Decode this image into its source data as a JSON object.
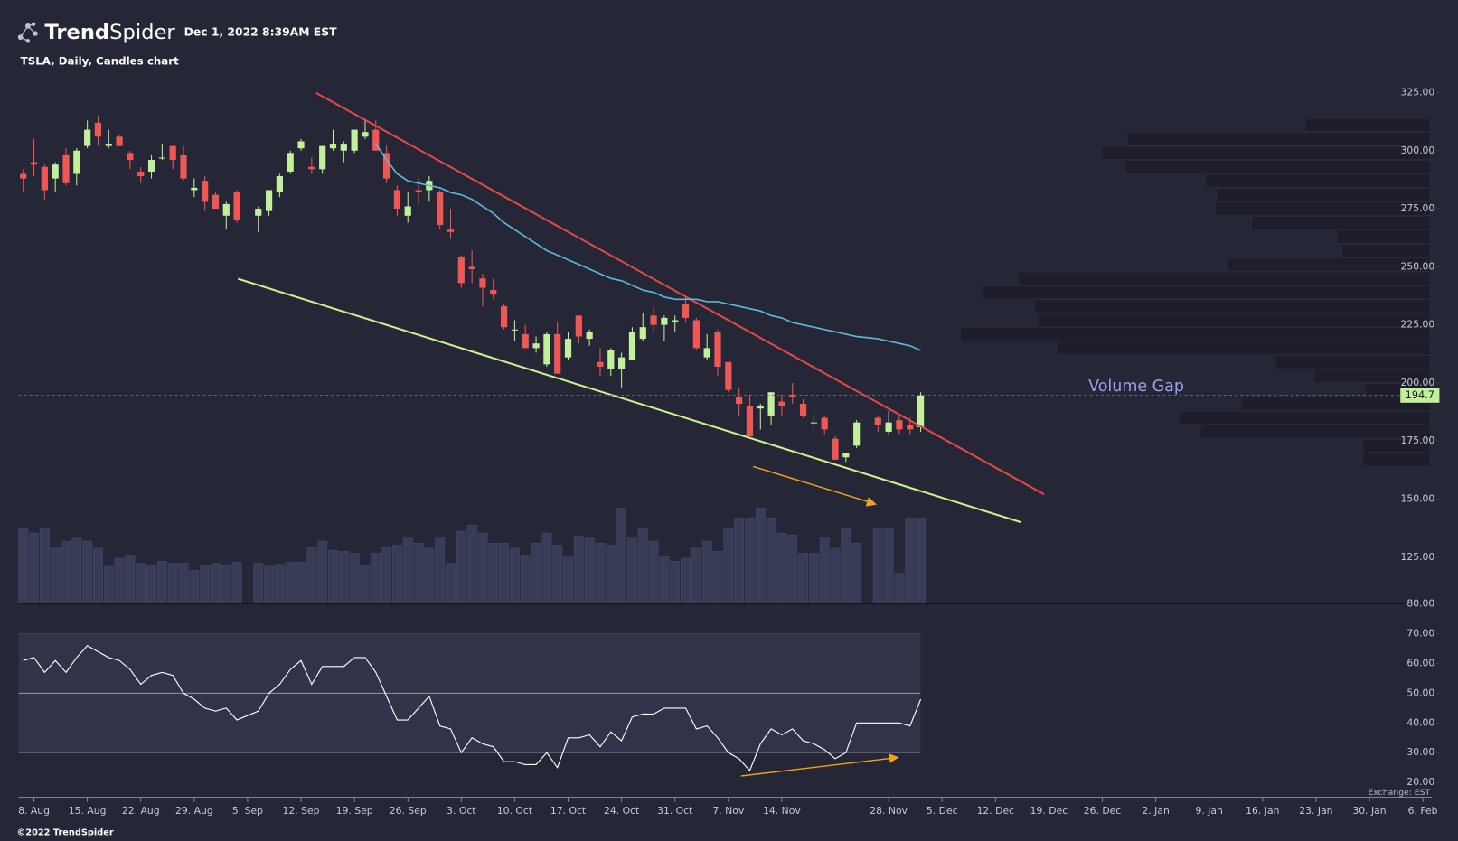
{
  "header": {
    "brand_bold": "Trend",
    "brand_light": "Spider",
    "timestamp": "Dec 1, 2022 8:39AM EST",
    "copyright": "©2022 TrendSpider",
    "exchange": "Exchange: EST"
  },
  "chart_data": {
    "type": "candlestick",
    "title": "TSLA, Daily, Candles chart",
    "annotations": [
      "Volume Gap"
    ],
    "up_color": "#c3f09a",
    "down_color": "#ef5656",
    "x": [
      "2022-08-05",
      "2022-08-08",
      "2022-08-09",
      "2022-08-10",
      "2022-08-11",
      "2022-08-12",
      "2022-08-15",
      "2022-08-16",
      "2022-08-17",
      "2022-08-18",
      "2022-08-19",
      "2022-08-22",
      "2022-08-23",
      "2022-08-24",
      "2022-08-25",
      "2022-08-26",
      "2022-08-29",
      "2022-08-30",
      "2022-08-31",
      "2022-09-01",
      "2022-09-02",
      "2022-09-06",
      "2022-09-07",
      "2022-09-08",
      "2022-09-09",
      "2022-09-12",
      "2022-09-13",
      "2022-09-14",
      "2022-09-15",
      "2022-09-16",
      "2022-09-19",
      "2022-09-20",
      "2022-09-21",
      "2022-09-22",
      "2022-09-23",
      "2022-09-26",
      "2022-09-27",
      "2022-09-28",
      "2022-09-29",
      "2022-09-30",
      "2022-10-03",
      "2022-10-04",
      "2022-10-05",
      "2022-10-06",
      "2022-10-07",
      "2022-10-10",
      "2022-10-11",
      "2022-10-12",
      "2022-10-13",
      "2022-10-14",
      "2022-10-17",
      "2022-10-18",
      "2022-10-19",
      "2022-10-20",
      "2022-10-21",
      "2022-10-24",
      "2022-10-25",
      "2022-10-26",
      "2022-10-27",
      "2022-10-28",
      "2022-10-31",
      "2022-11-01",
      "2022-11-02",
      "2022-11-03",
      "2022-11-04",
      "2022-11-07",
      "2022-11-08",
      "2022-11-09",
      "2022-11-10",
      "2022-11-11",
      "2022-11-14",
      "2022-11-15",
      "2022-11-16",
      "2022-11-17",
      "2022-11-18",
      "2022-11-21",
      "2022-11-22",
      "2022-11-23",
      "2022-11-25",
      "2022-11-28",
      "2022-11-29",
      "2022-11-30",
      "2022-12-01"
    ],
    "open": [
      290,
      295,
      293,
      288,
      298,
      290,
      302,
      312,
      302,
      306,
      299,
      291,
      291,
      297,
      302,
      298,
      283,
      287,
      281,
      272,
      282,
      272,
      274,
      282,
      291,
      301,
      293,
      292,
      301,
      300,
      300,
      306,
      309,
      299,
      283,
      272,
      283,
      283,
      282,
      266,
      254,
      250,
      245,
      240,
      233,
      223,
      221,
      215,
      208,
      221,
      211,
      229,
      219,
      209,
      206,
      206,
      210,
      219,
      229,
      225,
      226,
      234,
      227,
      211,
      222,
      209,
      194,
      190,
      189,
      186,
      192,
      195,
      191,
      183,
      185,
      176,
      168,
      173,
      185,
      179,
      184,
      182,
      181
    ],
    "high": [
      292,
      305,
      294,
      295,
      301,
      301,
      313,
      315,
      309,
      307,
      300,
      293,
      298,
      303,
      302,
      302,
      288,
      289,
      282,
      278,
      283,
      276,
      283,
      290,
      300,
      305,
      297,
      302,
      309,
      304,
      309,
      313,
      313,
      302,
      285,
      282,
      288,
      289,
      283,
      275,
      255,
      257,
      247,
      245,
      234,
      227,
      225,
      220,
      222,
      226,
      222,
      229,
      223,
      215,
      215,
      213,
      224,
      230,
      233,
      229,
      229,
      237,
      228,
      221,
      223,
      209,
      198,
      195,
      191,
      196,
      195,
      200,
      193,
      187,
      186,
      177,
      170,
      184,
      186,
      188,
      186,
      185,
      196
    ],
    "low": [
      282,
      289,
      279,
      282,
      285,
      285,
      301,
      302,
      301,
      302,
      292,
      286,
      288,
      296,
      292,
      287,
      280,
      274,
      275,
      266,
      269,
      265,
      272,
      280,
      290,
      300,
      290,
      290,
      300,
      295,
      299,
      305,
      300,
      286,
      272,
      269,
      277,
      278,
      266,
      262,
      241,
      243,
      233,
      236,
      223,
      218,
      215,
      213,
      207,
      204,
      210,
      217,
      216,
      203,
      203,
      198,
      210,
      218,
      222,
      218,
      222,
      226,
      214,
      210,
      203,
      196,
      186,
      177,
      180,
      182,
      186,
      191,
      185,
      180,
      178,
      167,
      166,
      172,
      179,
      178,
      178,
      178,
      179
    ],
    "close": [
      288,
      294,
      283,
      294,
      286,
      300,
      309,
      306,
      303,
      302,
      296,
      289,
      296,
      297,
      296,
      288,
      284,
      278,
      275,
      277,
      270,
      275,
      283,
      289,
      299,
      304,
      292,
      302,
      303,
      303,
      309,
      308,
      300,
      288,
      275,
      276,
      282,
      287,
      268,
      265,
      243,
      249,
      241,
      238,
      224,
      223,
      215,
      217,
      221,
      204,
      219,
      220,
      222,
      207,
      214,
      211,
      222,
      224,
      225,
      228,
      227,
      228,
      215,
      215,
      207,
      197,
      191,
      177,
      190,
      196,
      190,
      194,
      186,
      183,
      180,
      167,
      170,
      183,
      182,
      183,
      180,
      180,
      194.7
    ],
    "volume": [
      150,
      140,
      150,
      110,
      124,
      130,
      124,
      110,
      74,
      90,
      96,
      80,
      76,
      84,
      80,
      80,
      66,
      76,
      80,
      76,
      82,
      80,
      74,
      78,
      82,
      82,
      112,
      124,
      106,
      104,
      100,
      76,
      100,
      112,
      116,
      130,
      120,
      110,
      130,
      80,
      144,
      156,
      140,
      120,
      120,
      110,
      96,
      120,
      140,
      116,
      92,
      134,
      130,
      120,
      116,
      190,
      130,
      150,
      124,
      94,
      84,
      90,
      110,
      124,
      104,
      150,
      170,
      170,
      190,
      170,
      140,
      136,
      100,
      100,
      130,
      110,
      150,
      120,
      150,
      150,
      60,
      170,
      170
    ],
    "ma": {
      "color": "#5ab8d8",
      "values": [
        null,
        null,
        null,
        null,
        null,
        null,
        null,
        null,
        null,
        null,
        null,
        null,
        null,
        null,
        null,
        null,
        null,
        null,
        null,
        null,
        null,
        null,
        null,
        null,
        null,
        null,
        null,
        null,
        null,
        null,
        null,
        null,
        303,
        296,
        290,
        287,
        286,
        285,
        284,
        282,
        281,
        279,
        276,
        273,
        269,
        266,
        263,
        260,
        257,
        255,
        253,
        251,
        249,
        247,
        245,
        244,
        242,
        240,
        239,
        237,
        236,
        236,
        236,
        235,
        235,
        234,
        233,
        232,
        231,
        229,
        228,
        226,
        225,
        224,
        223,
        222,
        221,
        220,
        219,
        218,
        217,
        216,
        214
      ]
    },
    "rsi": {
      "color": "#ffffff",
      "values": [
        61,
        62,
        57,
        61,
        57,
        62,
        66,
        64,
        62,
        61,
        58,
        53,
        56,
        57,
        56,
        50,
        48,
        45,
        44,
        45,
        41,
        44,
        50,
        53,
        58,
        61,
        53,
        59,
        59,
        59,
        62,
        62,
        57,
        49,
        41,
        41,
        45,
        49,
        39,
        38,
        30,
        35,
        33,
        32,
        27,
        27,
        26,
        26,
        30,
        25,
        35,
        35,
        36,
        32,
        37,
        34,
        42,
        43,
        43,
        45,
        45,
        45,
        38,
        39,
        35,
        30,
        28,
        24,
        33,
        38,
        36,
        38,
        34,
        33,
        31,
        28,
        30,
        40,
        40,
        40,
        40,
        39,
        48
      ],
      "band": [
        30,
        70
      ],
      "mid": 50,
      "ylim": [
        15,
        80
      ],
      "yticks": [
        {
          "value": 20,
          "label": "20.00"
        },
        {
          "value": 30,
          "label": "30.00"
        },
        {
          "value": 40,
          "label": "40.00"
        },
        {
          "value": 50,
          "label": "50.00"
        },
        {
          "value": 60,
          "label": "60.00"
        },
        {
          "value": 70,
          "label": "70.00"
        },
        {
          "value": 80,
          "label": "80.00"
        }
      ]
    },
    "volume_profile": {
      "color": "#1d1e29",
      "bins": [
        164,
        170,
        176,
        182,
        188,
        194,
        200,
        206,
        212,
        218,
        224,
        230,
        236,
        242,
        248,
        254,
        260,
        266,
        272,
        278,
        284,
        290,
        296,
        302,
        308,
        314
      ],
      "values": [
        73,
        72,
        247,
        270,
        203,
        70,
        125,
        166,
        400,
        505,
        422,
        425,
        481,
        443,
        218,
        95,
        100,
        192,
        231,
        228,
        242,
        328,
        353,
        325,
        134
      ]
    },
    "ylim": [
      105,
      329
    ],
    "yticks": [
      {
        "value": 125,
        "label": "125.00"
      },
      {
        "value": 150,
        "label": "150.00"
      },
      {
        "value": 175,
        "label": "175.00"
      },
      {
        "value": 200,
        "label": "200.00"
      },
      {
        "value": 225,
        "label": "225.00"
      },
      {
        "value": 250,
        "label": "250.00"
      },
      {
        "value": 275,
        "label": "275.00"
      },
      {
        "value": 300,
        "label": "300.00"
      },
      {
        "value": 325,
        "label": "325.00"
      }
    ],
    "xticks": [
      {
        "value": "2022-08-08",
        "label": "8. Aug"
      },
      {
        "value": "2022-08-15",
        "label": "15. Aug"
      },
      {
        "value": "2022-08-22",
        "label": "22. Aug"
      },
      {
        "value": "2022-08-29",
        "label": "29. Aug"
      },
      {
        "value": "2022-09-05",
        "label": "5. Sep"
      },
      {
        "value": "2022-09-12",
        "label": "12. Sep"
      },
      {
        "value": "2022-09-19",
        "label": "19. Sep"
      },
      {
        "value": "2022-09-26",
        "label": "26. Sep"
      },
      {
        "value": "2022-10-03",
        "label": "3. Oct"
      },
      {
        "value": "2022-10-10",
        "label": "10. Oct"
      },
      {
        "value": "2022-10-17",
        "label": "17. Oct"
      },
      {
        "value": "2022-10-24",
        "label": "24. Oct"
      },
      {
        "value": "2022-10-31",
        "label": "31. Oct"
      },
      {
        "value": "2022-11-07",
        "label": "7. Nov"
      },
      {
        "value": "2022-11-14",
        "label": "14. Nov"
      },
      {
        "value": "2022-11-28",
        "label": "28. Nov"
      },
      {
        "value": "2022-12-05",
        "label": "5. Dec"
      },
      {
        "value": "2022-12-12",
        "label": "12. Dec"
      },
      {
        "value": "2022-12-19",
        "label": "19. Dec"
      },
      {
        "value": "2022-12-26",
        "label": "26. Dec"
      },
      {
        "value": "2023-01-02",
        "label": "2. Jan"
      },
      {
        "value": "2023-01-09",
        "label": "9. Jan"
      },
      {
        "value": "2023-01-16",
        "label": "16. Jan"
      },
      {
        "value": "2023-01-23",
        "label": "23. Jan"
      },
      {
        "value": "2023-01-30",
        "label": "30. Jan"
      },
      {
        "value": "2023-02-06",
        "label": "6. Feb"
      }
    ]
  }
}
